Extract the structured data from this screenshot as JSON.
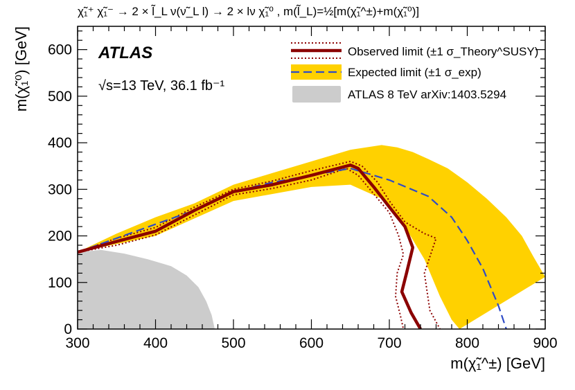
{
  "chart_data": {
    "type": "line",
    "title": "χ̃₁⁺ χ̃₁⁻ → 2 × l̃_L ν(ν̃_L l) → 2 × lν χ̃₁⁰ , m(l̃_L)=½[m(χ̃₁^±)+m(χ̃₁⁰)]",
    "experiment_label": "ATLAS",
    "energy_label": "√s=13 TeV, 36.1 fb⁻¹",
    "xlabel": "m(χ̃₁^±) [GeV]",
    "ylabel": "m(χ̃₁⁰) [GeV]",
    "xlim": [
      300,
      900
    ],
    "ylim": [
      0,
      650
    ],
    "x_ticks": [
      300,
      400,
      500,
      600,
      700,
      800,
      900
    ],
    "y_ticks": [
      0,
      100,
      200,
      300,
      400,
      500,
      600
    ],
    "legend_placement": "top-right",
    "colors": {
      "observed": "#8b0000",
      "expected_line": "#2e4bc7",
      "expected_band": "#ffd100",
      "previous": "#cccccc"
    },
    "legend": [
      {
        "key": "observed",
        "text": "Observed limit (±1 σ_Theory^SUSY)"
      },
      {
        "key": "expected",
        "text": "Expected limit (±1 σ_exp)"
      },
      {
        "key": "previous",
        "text": "ATLAS 8 TeV arXiv:1403.5294"
      }
    ],
    "series": [
      {
        "key": "expected_band_upper",
        "x": [
          300,
          350,
          400,
          450,
          500,
          550,
          600,
          650,
          690,
          710,
          730,
          750,
          775,
          800,
          825,
          850,
          870,
          885,
          900
        ],
        "y": [
          165,
          205,
          240,
          270,
          310,
          335,
          360,
          385,
          395,
          390,
          380,
          365,
          345,
          315,
          280,
          240,
          200,
          155,
          112
        ]
      },
      {
        "key": "expected_band_lower",
        "x": [
          300,
          400,
          500,
          600,
          650,
          690,
          720,
          745,
          765,
          780,
          790
        ],
        "y": [
          165,
          200,
          275,
          305,
          310,
          280,
          220,
          150,
          70,
          20,
          0
        ]
      },
      {
        "key": "expected",
        "x": [
          300,
          350,
          400,
          450,
          500,
          550,
          600,
          650,
          700,
          750,
          780,
          800,
          820,
          840,
          850
        ],
        "y": [
          165,
          195,
          225,
          255,
          295,
          315,
          330,
          345,
          320,
          285,
          240,
          190,
          130,
          50,
          0
        ]
      },
      {
        "key": "observed",
        "x": [
          300,
          350,
          400,
          450,
          500,
          550,
          600,
          650,
          660,
          680,
          700,
          720,
          730,
          722,
          716,
          728,
          740
        ],
        "y": [
          165,
          188,
          210,
          255,
          295,
          310,
          330,
          352,
          345,
          305,
          262,
          220,
          175,
          120,
          80,
          35,
          0
        ]
      },
      {
        "key": "observed_theory_up",
        "x": [
          300,
          350,
          400,
          450,
          500,
          550,
          600,
          650,
          665,
          685,
          700,
          720,
          745,
          760,
          745,
          752,
          765
        ],
        "y": [
          165,
          195,
          218,
          262,
          300,
          318,
          340,
          360,
          350,
          315,
          275,
          230,
          205,
          195,
          120,
          40,
          0
        ]
      },
      {
        "key": "observed_theory_down",
        "x": [
          300,
          350,
          400,
          450,
          500,
          550,
          600,
          645,
          660,
          680,
          700,
          712,
          718,
          710,
          708,
          714,
          718
        ],
        "y": [
          165,
          180,
          202,
          245,
          288,
          302,
          320,
          345,
          330,
          290,
          250,
          200,
          160,
          120,
          70,
          30,
          0
        ]
      },
      {
        "key": "previous",
        "x": [
          300,
          330,
          360,
          390,
          420,
          440,
          455,
          465,
          472,
          476,
          300
        ],
        "y": [
          165,
          170,
          162,
          150,
          135,
          115,
          90,
          60,
          30,
          0,
          0
        ]
      }
    ]
  }
}
